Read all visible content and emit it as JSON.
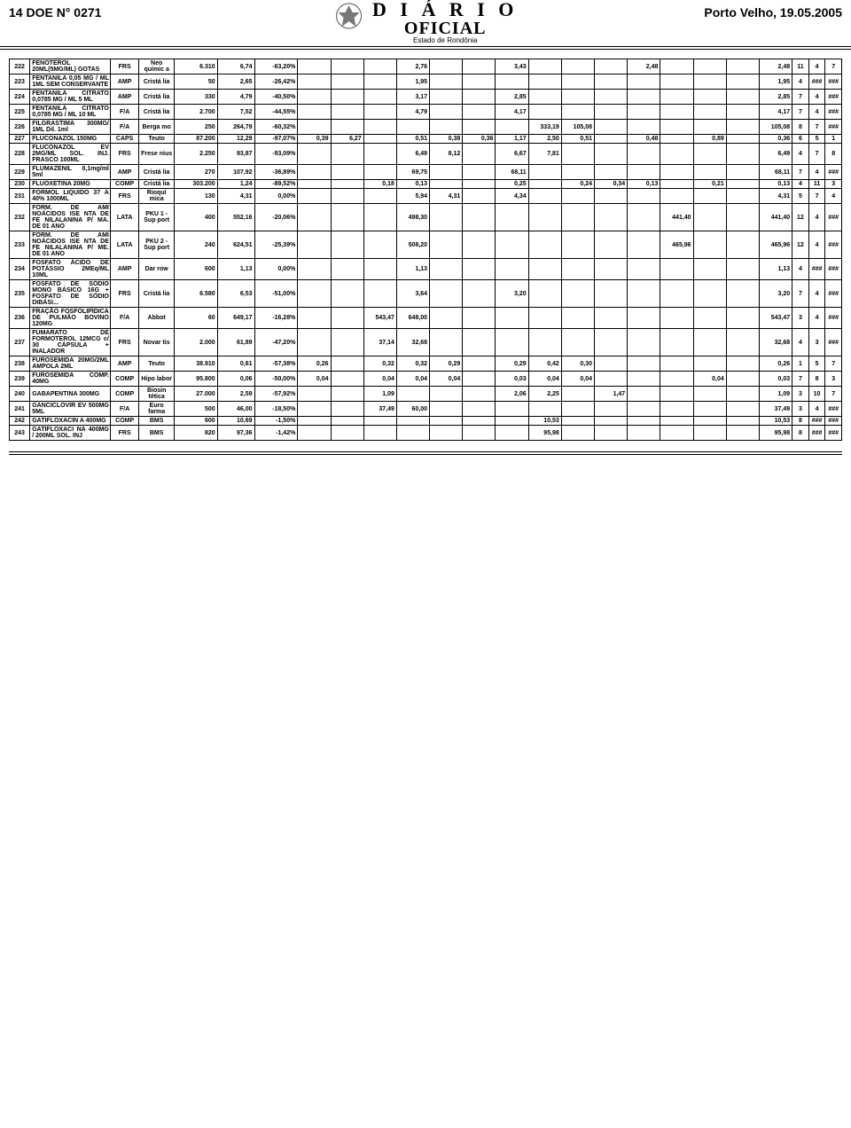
{
  "header": {
    "left": "14  DOE N° 0271",
    "masthead_title": "D I Á R I O",
    "masthead_sub": "OFICIAL",
    "masthead_state": "Estado de Rondônia",
    "right": "Porto Velho, 19.05.2005"
  },
  "table": {
    "col_align": [
      "ctr",
      "desc",
      "ctr",
      "ctr",
      "num",
      "num",
      "num",
      "num",
      "num",
      "num",
      "num",
      "num",
      "num",
      "num",
      "num",
      "num",
      "num",
      "num",
      "num",
      "num",
      "num",
      "num",
      "ctr",
      "ctr",
      "ctr"
    ],
    "rows": [
      [
        "222",
        "FENOTEROL 20ML(5MG/ML) GOTAS",
        "FRS",
        "Neo químic a",
        "6.310",
        "6,74",
        "-63,20%",
        "",
        "",
        "",
        "2,76",
        "",
        "",
        "3,43",
        "",
        "",
        "",
        "2,48",
        "",
        "",
        "",
        "2,48",
        "11",
        "4",
        "7"
      ],
      [
        "223",
        "FENTANILA 0,05 MG / ML 1ML SEM CONSERVANTE",
        "AMP",
        "Cristá lia",
        "50",
        "2,65",
        "-26,42%",
        "",
        "",
        "",
        "1,95",
        "",
        "",
        "",
        "",
        "",
        "",
        "",
        "",
        "",
        "",
        "1,95",
        "4",
        "###",
        "###"
      ],
      [
        "224",
        "FENTANILA CITRATO 0,0785 MG / ML 5 ML",
        "AMP",
        "Cristá lia",
        "330",
        "4,79",
        "-40,50%",
        "",
        "",
        "",
        "3,17",
        "",
        "",
        "2,85",
        "",
        "",
        "",
        "",
        "",
        "",
        "",
        "2,85",
        "7",
        "4",
        "###"
      ],
      [
        "225",
        "FENTANILA CITRATO 0,0785 MG / ML 10 ML",
        "F/A",
        "Cristá lia",
        "2.700",
        "7,52",
        "-44,55%",
        "",
        "",
        "",
        "4,79",
        "",
        "",
        "4,17",
        "",
        "",
        "",
        "",
        "",
        "",
        "",
        "4,17",
        "7",
        "4",
        "###"
      ],
      [
        "226",
        "FILGRASTIMA 300MG/ 1ML Dil. 1ml",
        "F/A",
        "Berga mo",
        "250",
        "264,79",
        "-60,32%",
        "",
        "",
        "",
        "",
        "",
        "",
        "",
        "333,19",
        "105,08",
        "",
        "",
        "",
        "",
        "",
        "105,08",
        "8",
        "7",
        "###"
      ],
      [
        "227",
        "FLUCONAZOL 150MG",
        "CAPS",
        "Teuto",
        "87.200",
        "12,29",
        "-97,07%",
        "0,39",
        "6,27",
        "",
        "0,51",
        "0,38",
        "0,36",
        "1,17",
        "2,50",
        "0,51",
        "",
        "0,48",
        "",
        "0,89",
        "",
        "0,36",
        "6",
        "5",
        "1"
      ],
      [
        "228",
        "FLUCONAZOL EV 2MG/ML SOL. INJ. FRASCO 100ML",
        "FRS",
        "Frese nius",
        "2.250",
        "93,87",
        "-93,09%",
        "",
        "",
        "",
        "6,49",
        "8,12",
        "",
        "6,67",
        "7,81",
        "",
        "",
        "",
        "",
        "",
        "",
        "6,49",
        "4",
        "7",
        "8"
      ],
      [
        "229",
        "FLUMAZENIL 0,1mg/ml 5ml",
        "AMP",
        "Cristá lia",
        "270",
        "107,92",
        "-36,89%",
        "",
        "",
        "",
        "69,75",
        "",
        "",
        "68,11",
        "",
        "",
        "",
        "",
        "",
        "",
        "",
        "68,11",
        "7",
        "4",
        "###"
      ],
      [
        "230",
        "FLUOXETINA 20MG",
        "COMP",
        "Cristá lia",
        "303.200",
        "1,24",
        "-89,52%",
        "",
        "",
        "0,18",
        "0,13",
        "",
        "",
        "0,25",
        "",
        "0,24",
        "0,34",
        "0,13",
        "",
        "0,21",
        "",
        "0,13",
        "4",
        "11",
        "3"
      ],
      [
        "231",
        "FORMOL LIQUIDO 37 A 40% 1000ML",
        "FRS",
        "Rioquí mica",
        "130",
        "4,31",
        "0,00%",
        "",
        "",
        "",
        "5,94",
        "4,31",
        "",
        "4,34",
        "",
        "",
        "",
        "",
        "",
        "",
        "",
        "4,31",
        "5",
        "7",
        "4"
      ],
      [
        "232",
        "FÓRM. DE AMI NOÁCIDOS ISE NTA DE FE NILALANINA P/ MA. DE 01 ANO",
        "LATA",
        "PKU 1 - Sup port",
        "400",
        "552,16",
        "-20,06%",
        "",
        "",
        "",
        "498,30",
        "",
        "",
        "",
        "",
        "",
        "",
        "",
        "441,40",
        "",
        "",
        "441,40",
        "12",
        "4",
        "###"
      ],
      [
        "233",
        "FÓRM. DE AMI NOÁCIDOS ISE NTA DE FE NILALANINA P/ ME. DE 01 ANO",
        "LATA",
        "PKU 2 - Sup port",
        "240",
        "624,51",
        "-25,39%",
        "",
        "",
        "",
        "508,20",
        "",
        "",
        "",
        "",
        "",
        "",
        "",
        "465,96",
        "",
        "",
        "465,96",
        "12",
        "4",
        "###"
      ],
      [
        "234",
        "FOSFATO ÁCIDO DE POTÁSSIO 2MEq/ML 10ML",
        "AMP",
        "Dar row",
        "600",
        "1,13",
        "0,00%",
        "",
        "",
        "",
        "1,13",
        "",
        "",
        "",
        "",
        "",
        "",
        "",
        "",
        "",
        "",
        "1,13",
        "4",
        "###",
        "###"
      ],
      [
        "235",
        "FOSFATO DE SÓDIO MONO BÁSICO 16G + FOSFATO DE SÓDIO DIBÁSI...",
        "FRS",
        "Cristá lia",
        "6.580",
        "6,53",
        "-51,00%",
        "",
        "",
        "",
        "3,64",
        "",
        "",
        "3,20",
        "",
        "",
        "",
        "",
        "",
        "",
        "",
        "3,20",
        "7",
        "4",
        "###"
      ],
      [
        "236",
        "FRAÇÃO FOSFOLIPÍDICA DE PULMÃO BOVINO 120MG",
        "F/A",
        "Abbot",
        "60",
        "649,17",
        "-16,28%",
        "",
        "",
        "543,47",
        "648,00",
        "",
        "",
        "",
        "",
        "",
        "",
        "",
        "",
        "",
        "",
        "543,47",
        "3",
        "4",
        "###"
      ],
      [
        "237",
        "FUMARATO DE FORMOTEROL 12MCG c/ 30 CÁPSULA + INALADOR",
        "FRS",
        "Novar tis",
        "2.000",
        "61,89",
        "-47,20%",
        "",
        "",
        "37,14",
        "32,68",
        "",
        "",
        "",
        "",
        "",
        "",
        "",
        "",
        "",
        "",
        "32,68",
        "4",
        "3",
        "###"
      ],
      [
        "238",
        "FUROSEMIDA 20MG/2ML AMPOLA 2ML",
        "AMP",
        "Teuto",
        "38.910",
        "0,61",
        "-57,38%",
        "0,26",
        "",
        "0,32",
        "0,32",
        "0,29",
        "",
        "0,29",
        "0,42",
        "0,30",
        "",
        "",
        "",
        "",
        "",
        "0,26",
        "1",
        "5",
        "7"
      ],
      [
        "239",
        "FUROSEMIDA COMP. 40MG",
        "COMP",
        "Hipo labor",
        "95.800",
        "0,06",
        "-50,00%",
        "0,04",
        "",
        "0,04",
        "0,04",
        "0,04",
        "",
        "0,03",
        "0,04",
        "0,04",
        "",
        "",
        "",
        "0,04",
        "",
        "0,03",
        "7",
        "8",
        "3"
      ],
      [
        "240",
        "GABAPENTINA 300MG",
        "COMP",
        "Biosin tética",
        "27.000",
        "2,59",
        "-57,92%",
        "",
        "",
        "1,09",
        "",
        "",
        "",
        "2,06",
        "2,25",
        "",
        "1,47",
        "",
        "",
        "",
        "",
        "1,09",
        "3",
        "10",
        "7"
      ],
      [
        "241",
        "GANCICLOVIR EV 500MG 5ML",
        "F/A",
        "Euro farma",
        "500",
        "46,00",
        "-18,50%",
        "",
        "",
        "37,49",
        "60,00",
        "",
        "",
        "",
        "",
        "",
        "",
        "",
        "",
        "",
        "",
        "37,49",
        "3",
        "4",
        "###"
      ],
      [
        "242",
        "GATIFLOXACIN A 400MG",
        "COMP",
        "BMS",
        "600",
        "10,69",
        "-1,50%",
        "",
        "",
        "",
        "",
        "",
        "",
        "",
        "10,53",
        "",
        "",
        "",
        "",
        "",
        "",
        "10,53",
        "8",
        "###",
        "###"
      ],
      [
        "243",
        "GATIFLOXACI NA 400MG / 200ML SOL. INJ",
        "FRS",
        "BMS",
        "820",
        "97,36",
        "-1,42%",
        "",
        "",
        "",
        "",
        "",
        "",
        "",
        "95,98",
        "",
        "",
        "",
        "",
        "",
        "",
        "95,98",
        "8",
        "###",
        "###"
      ]
    ]
  }
}
